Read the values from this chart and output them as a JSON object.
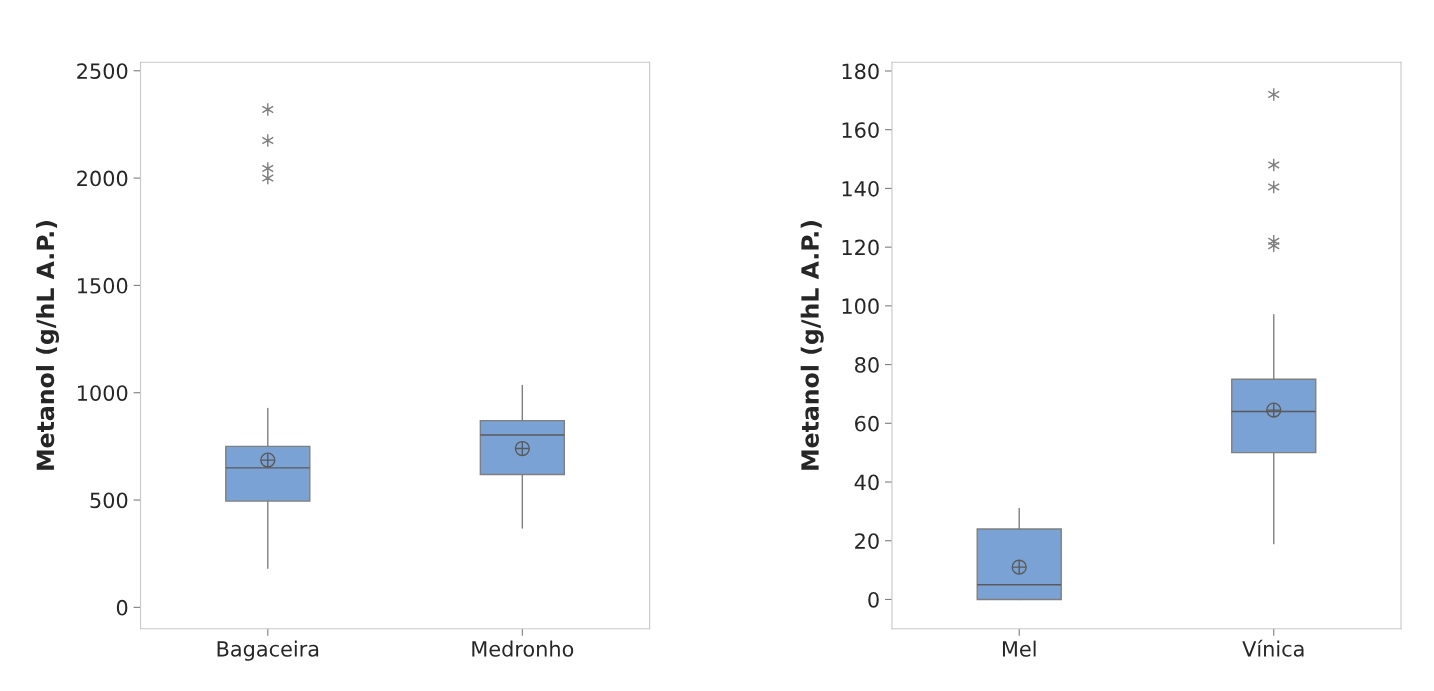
{
  "chart_data": [
    {
      "type": "box",
      "categories": [
        "Bagaceira",
        "Medronho"
      ],
      "ylabel": "Metanol (g/hL A.P.)",
      "ylim": [
        -100,
        2540
      ],
      "yticks": [
        0,
        500,
        1000,
        1500,
        2000,
        2500
      ],
      "color": "#7aa2d4",
      "boxes": [
        {
          "low": 182,
          "q1": 495,
          "median": 650,
          "q3": 750,
          "high": 927,
          "mean": 686,
          "outliers": [
            2320,
            2175,
            2045,
            2000
          ]
        },
        {
          "low": 370,
          "q1": 619,
          "median": 803,
          "q3": 870,
          "high": 1034,
          "mean": 740
        }
      ]
    },
    {
      "type": "box",
      "categories": [
        "Mel",
        "Vínica"
      ],
      "ylabel": "Metanol (g/hL A.P.)",
      "ylim": [
        -10,
        183
      ],
      "yticks": [
        0,
        20,
        40,
        60,
        80,
        100,
        120,
        140,
        160,
        180
      ],
      "color": "#7aa2d4",
      "boxes": [
        {
          "low": 0,
          "q1": 0,
          "median": 5,
          "q3": 24,
          "high": 31,
          "mean": 11
        },
        {
          "low": 19,
          "q1": 50,
          "median": 64,
          "q3": 75,
          "high": 97,
          "mean": 64.5,
          "outliers": [
            172,
            148,
            140.5,
            122,
            120.5
          ]
        }
      ]
    }
  ]
}
